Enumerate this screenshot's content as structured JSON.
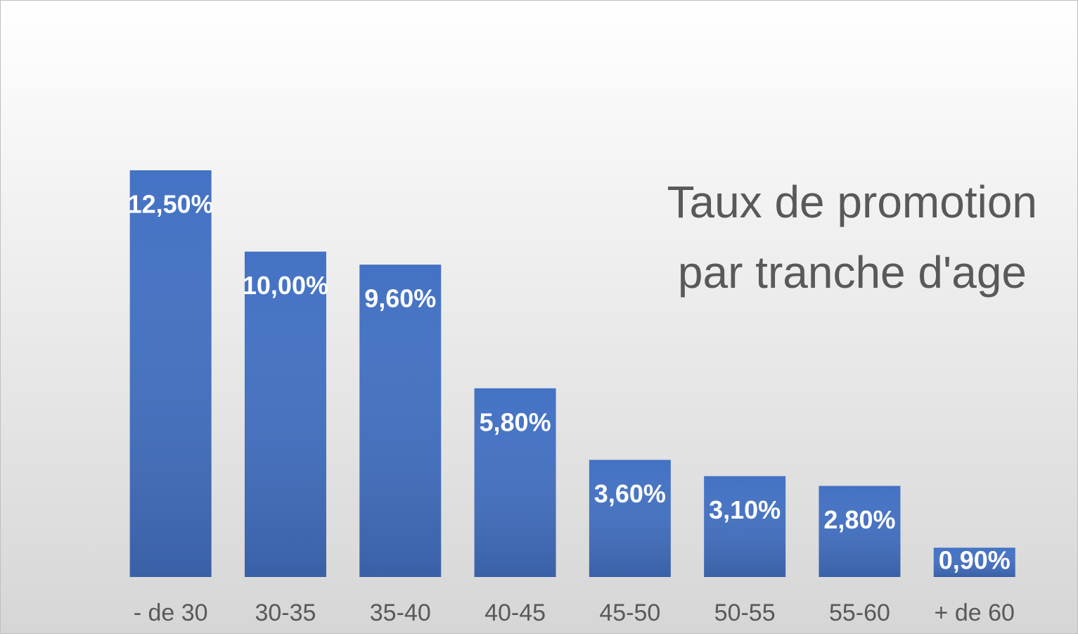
{
  "chart_data": {
    "type": "bar",
    "title": [
      "Taux de promotion",
      "par tranche d'age"
    ],
    "categories": [
      "- de 30",
      "30-35",
      "35-40",
      "40-45",
      "45-50",
      "50-55",
      "55-60",
      "+ de 60"
    ],
    "values": [
      12.5,
      10,
      9.6,
      5.8,
      3.6,
      3.1,
      2.8,
      0.9
    ],
    "value_labels": [
      "12,50%",
      "10,00%",
      "9,60%",
      "5,80%",
      "3,60%",
      "3,10%",
      "2,80%",
      "0,90%"
    ],
    "color": "#4472c4"
  }
}
